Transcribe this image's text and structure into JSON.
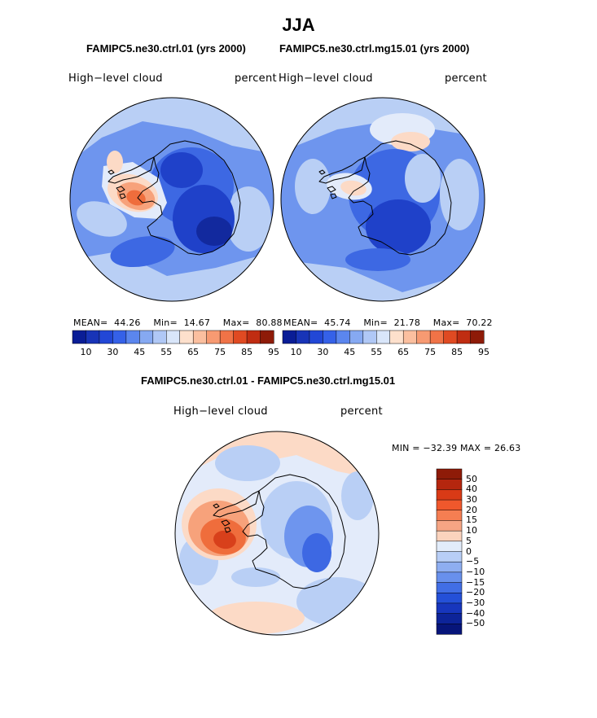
{
  "main_title": "JJA",
  "panels": [
    {
      "title": "FAMIPC5.ne30.ctrl.01 (yrs 2000)",
      "variable": "High−level cloud",
      "units": "percent",
      "stats": {
        "mean_label": "MEAN=",
        "mean": "44.26",
        "min_label": "Min=",
        "min": "14.67",
        "max_label": "Max=",
        "max": "80.88"
      },
      "colorbar": {
        "colors": [
          "#0a1d96",
          "#1834b7",
          "#2247d6",
          "#3561e8",
          "#5b86ee",
          "#86a9f2",
          "#b0c8f6",
          "#d9e6fa",
          "#fde0cc",
          "#fbbf9f",
          "#f79a72",
          "#f07347",
          "#e04a22",
          "#c02d12",
          "#8e1b08"
        ],
        "labels": [
          "10",
          "30",
          "45",
          "55",
          "65",
          "75",
          "85",
          "95"
        ]
      }
    },
    {
      "title": "FAMIPC5.ne30.ctrl.mg15.01 (yrs 2000)",
      "variable": "High−level cloud",
      "units": "percent",
      "stats": {
        "mean_label": "MEAN=",
        "mean": "45.74",
        "min_label": "Min=",
        "min": "21.78",
        "max_label": "Max=",
        "max": "70.22"
      },
      "colorbar": {
        "colors": [
          "#0a1d96",
          "#1834b7",
          "#2247d6",
          "#3561e8",
          "#5b86ee",
          "#86a9f2",
          "#b0c8f6",
          "#d9e6fa",
          "#fde0cc",
          "#fbbf9f",
          "#f79a72",
          "#f07347",
          "#e04a22",
          "#c02d12",
          "#8e1b08"
        ],
        "labels": [
          "10",
          "30",
          "45",
          "55",
          "65",
          "75",
          "85",
          "95"
        ]
      }
    }
  ],
  "difference": {
    "title": "FAMIPC5.ne30.ctrl.01 - FAMIPC5.ne30.ctrl.mg15.01",
    "variable": "High−level cloud",
    "units": "percent",
    "minmax_text": "MIN = −32.39 MAX =   26.63",
    "colorbar": {
      "colors": [
        "#8e1b08",
        "#b5260e",
        "#d93a16",
        "#f0582c",
        "#f57e52",
        "#f6a584",
        "#fbd3bd",
        "#e2ecfa",
        "#b8cef6",
        "#8eaef1",
        "#6890ec",
        "#416ee5",
        "#2450d8",
        "#1736bd",
        "#0d2499",
        "#07157a"
      ],
      "labels": [
        "50",
        "40",
        "30",
        "20",
        "15",
        "10",
        "5",
        "0",
        "−5",
        "−10",
        "−15",
        "−20",
        "−30",
        "−40",
        "−50"
      ]
    }
  },
  "map_colors": {
    "light_blue": "#b9cff5",
    "mid_blue": "#6e95ee",
    "blue": "#3d68e3",
    "dark_blue": "#1f41c9",
    "navy": "#12299e",
    "pale": "#e3ebfa",
    "peach": "#fcdac6",
    "salmon": "#f7a27b",
    "orange": "#ef6d3c",
    "red": "#d8401b"
  }
}
